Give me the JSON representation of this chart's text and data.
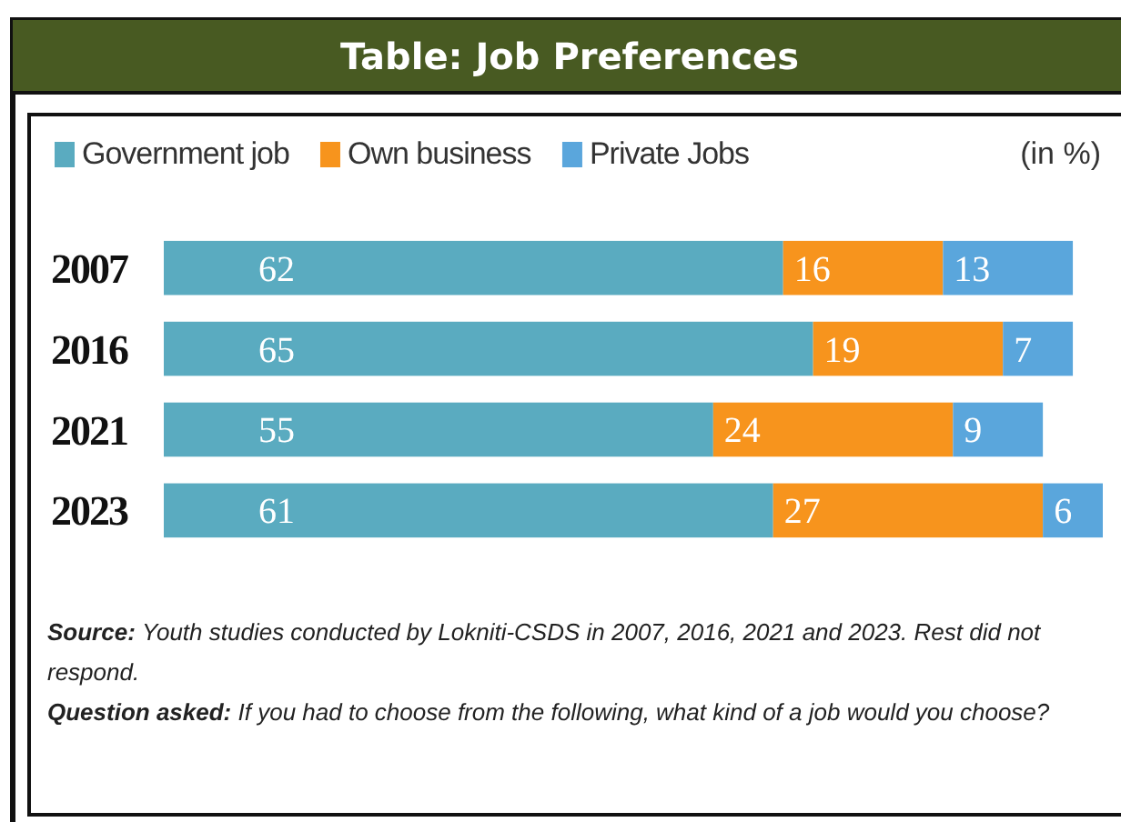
{
  "chart_data": {
    "type": "bar",
    "orientation": "horizontal",
    "stacked": true,
    "data_labels": true,
    "legend": "top",
    "title": "Table: Job Preferences",
    "categories": [
      "2007",
      "2016",
      "2021",
      "2023"
    ],
    "series": [
      {
        "name": "Government job",
        "color": "#5aabc0",
        "values": [
          62,
          65,
          55,
          61
        ]
      },
      {
        "name": "Own business",
        "color": "#f7941d",
        "values": [
          16,
          19,
          24,
          27
        ]
      },
      {
        "name": "Private Jobs",
        "color": "#5aa6dc",
        "values": [
          13,
          7,
          9,
          6
        ]
      }
    ],
    "annotations": [
      "(in %)",
      "Source: Youth studies conducted by Lokniti-CSDS in 2007, 2016, 2021 and 2023. Rest did not respond.",
      "Question asked: If you had to choose from the following, what kind of a job would you choose?"
    ]
  }
}
